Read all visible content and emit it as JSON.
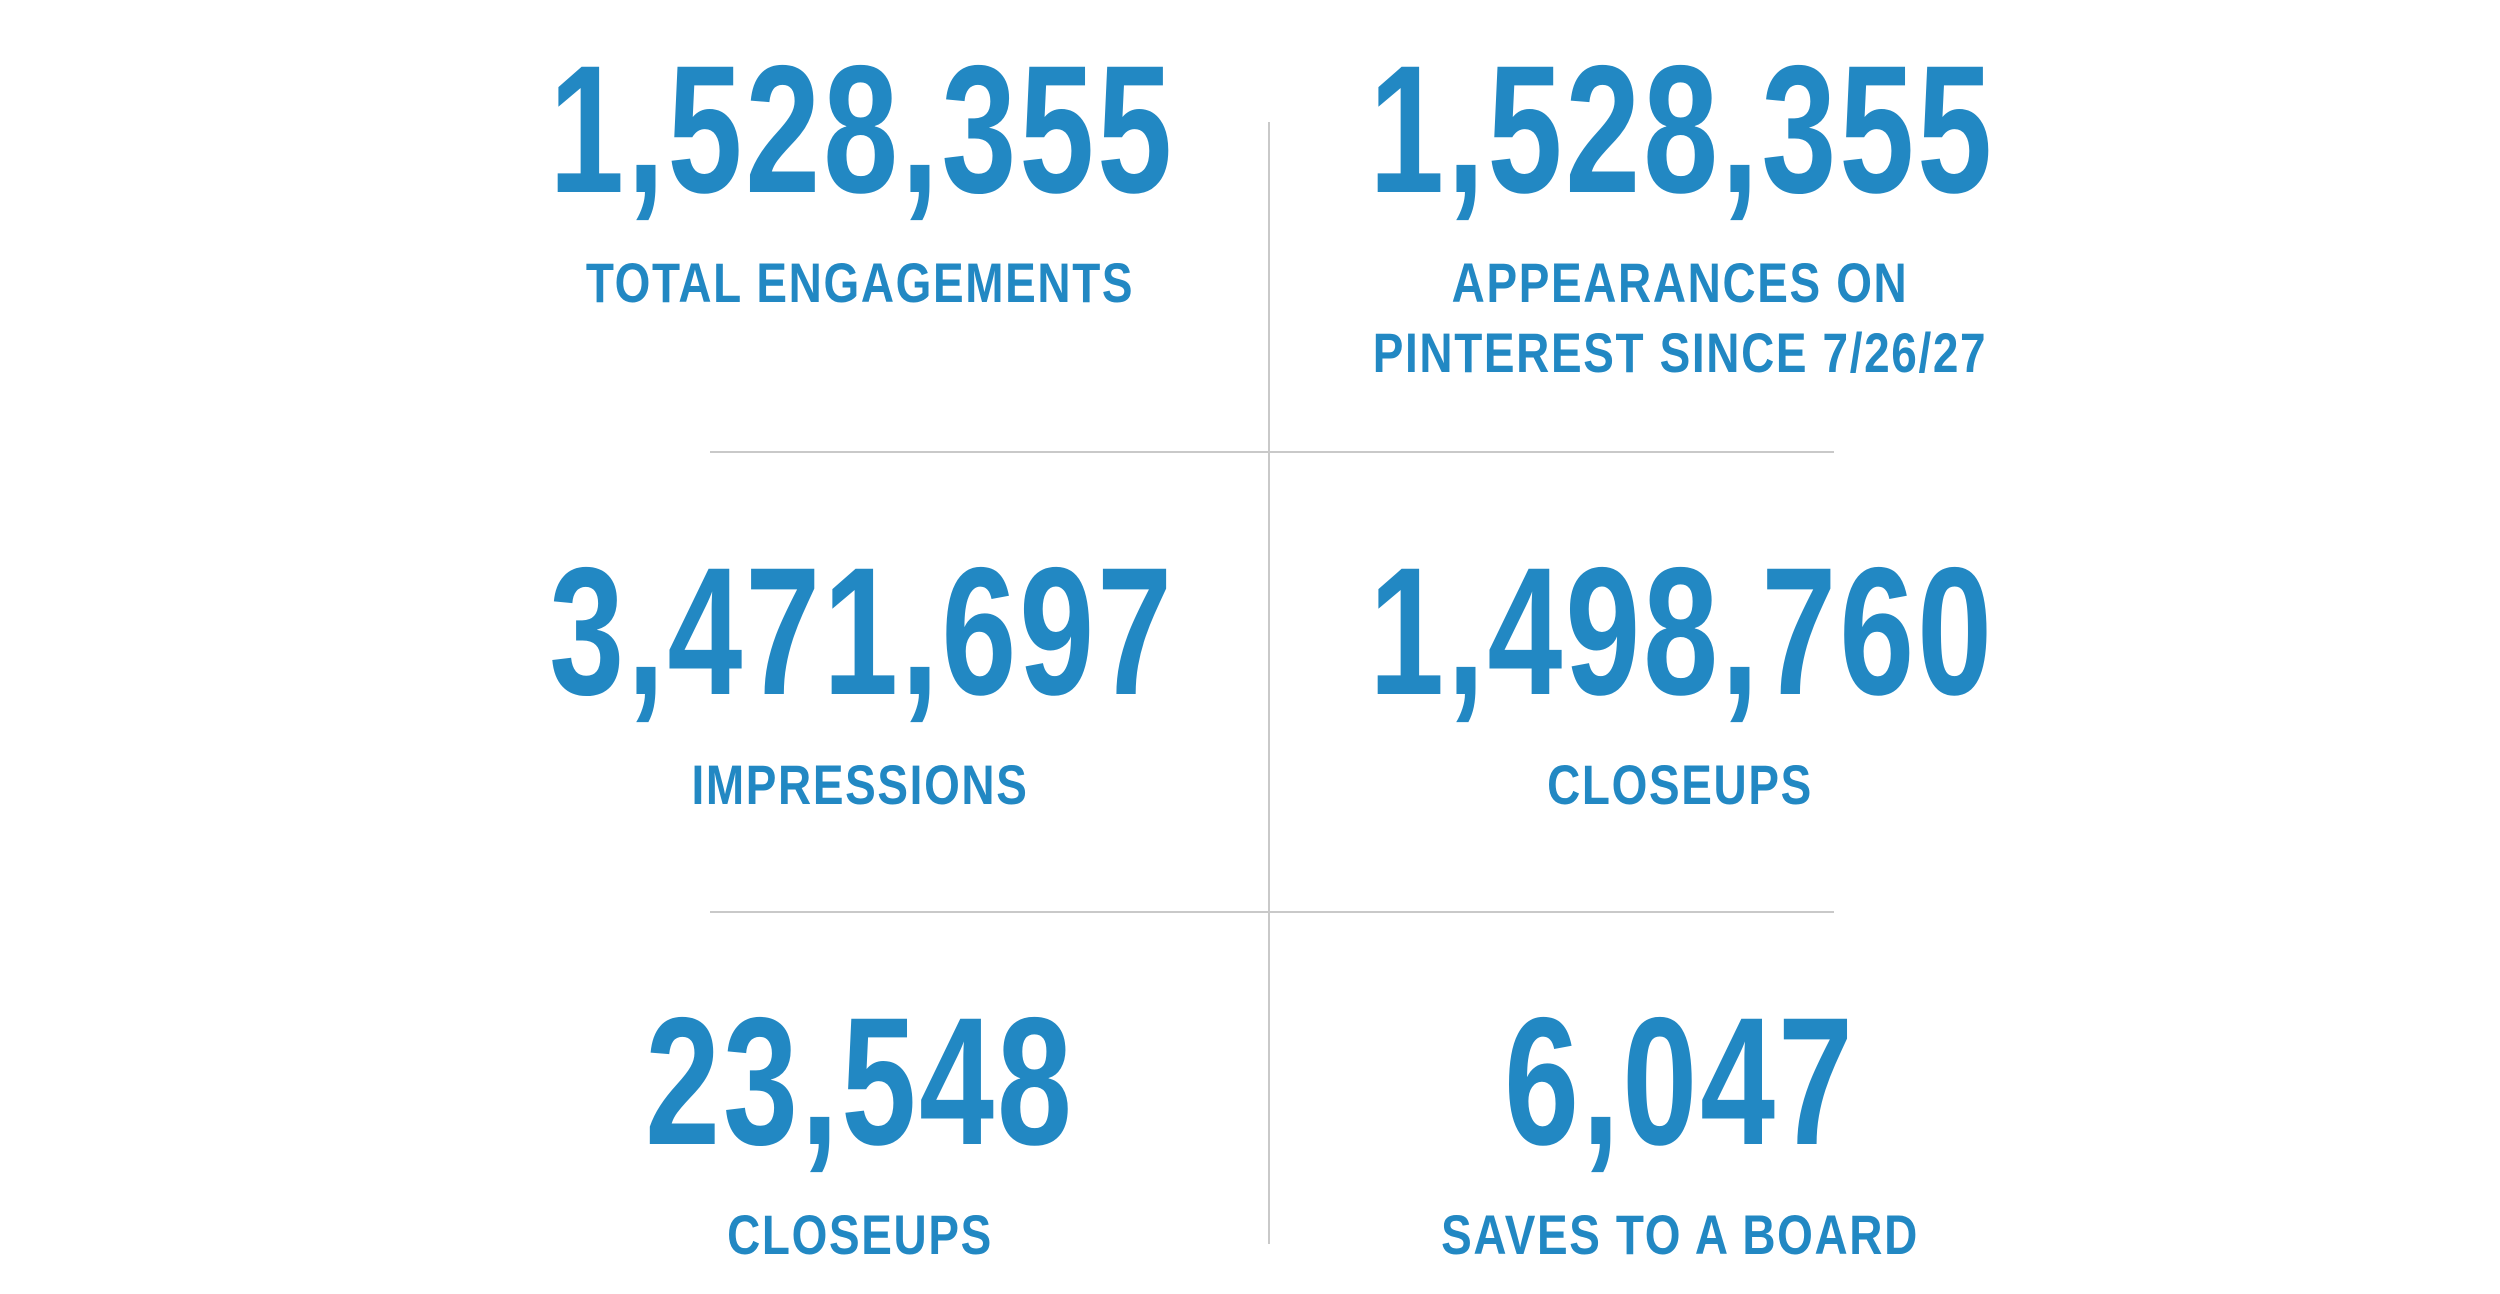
{
  "stats": [
    {
      "value": "1,528,355",
      "label_lines": [
        "TOTAL ENGAGEMENTS"
      ]
    },
    {
      "value": "1,528,355",
      "label_lines": [
        "APPEARANCES ON",
        "PINTEREST SINCE 7/26/27"
      ]
    },
    {
      "value": "3,471,697",
      "label_lines": [
        "IMPRESSIONS"
      ]
    },
    {
      "value": "1,498,760",
      "label_lines": [
        "CLOSEUPS"
      ]
    },
    {
      "value": "23,548",
      "label_lines": [
        "CLOSEUPS"
      ]
    },
    {
      "value": "6,047",
      "label_lines": [
        "SAVES TO A BOARD"
      ]
    }
  ],
  "colors": {
    "accent": "#2288c3",
    "divider": "#c9c9c9",
    "background": "#ffffff"
  }
}
